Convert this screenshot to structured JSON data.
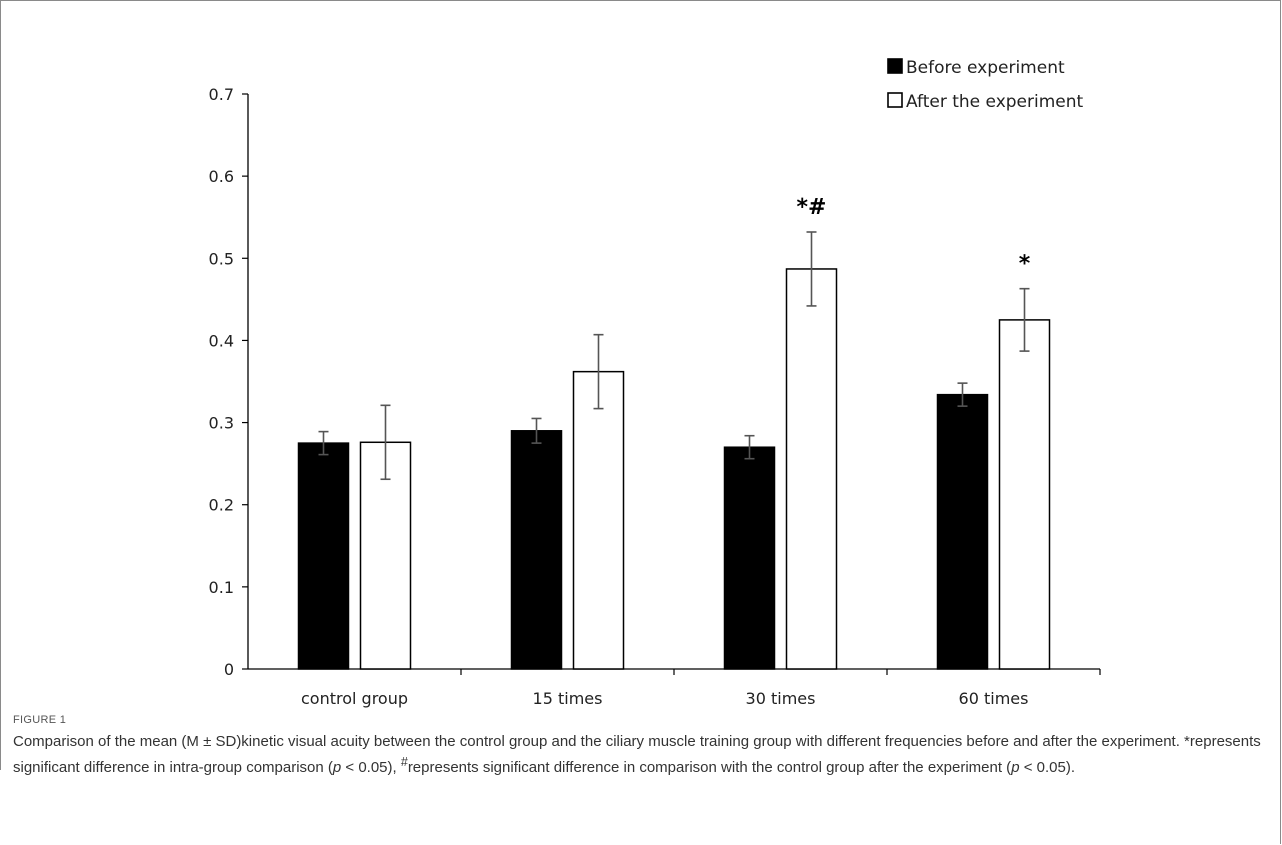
{
  "chart_data": {
    "type": "bar",
    "categories": [
      "control group",
      "15 times",
      "30 times",
      "60 times"
    ],
    "series": [
      {
        "name": "Before experiment",
        "values": [
          0.275,
          0.29,
          0.27,
          0.334
        ],
        "errors": [
          0.014,
          0.015,
          0.014,
          0.014
        ],
        "color": "#000000"
      },
      {
        "name": "After the experiment",
        "values": [
          0.276,
          0.362,
          0.487,
          0.425
        ],
        "errors": [
          0.045,
          0.045,
          0.045,
          0.038
        ],
        "color": "#ffffff"
      }
    ],
    "yticks": [
      "0",
      "0.1",
      "0.2",
      "0.3",
      "0.4",
      "0.5",
      "0.6",
      "0.7"
    ],
    "ylim": [
      0,
      0.7
    ],
    "annotations": [
      {
        "category": "30 times",
        "series": "After the experiment",
        "text": "*#"
      },
      {
        "category": "60 times",
        "series": "After the experiment",
        "text": "*"
      }
    ],
    "legend_position": "top-right",
    "grid": false
  },
  "caption": {
    "label": "FIGURE 1",
    "text_part1": "Comparison of the mean (M ± SD)kinetic visual acuity between the control group and the ciliary muscle training group with different frequencies before and after the experiment. *represents significant difference in intra-group comparison (",
    "p1": "p",
    "text_part2": " < 0.05), ",
    "hash": "#",
    "text_part3": "represents significant difference in comparison with the control group after the experiment (",
    "p2": "p",
    "text_part4": " < 0.05)."
  }
}
